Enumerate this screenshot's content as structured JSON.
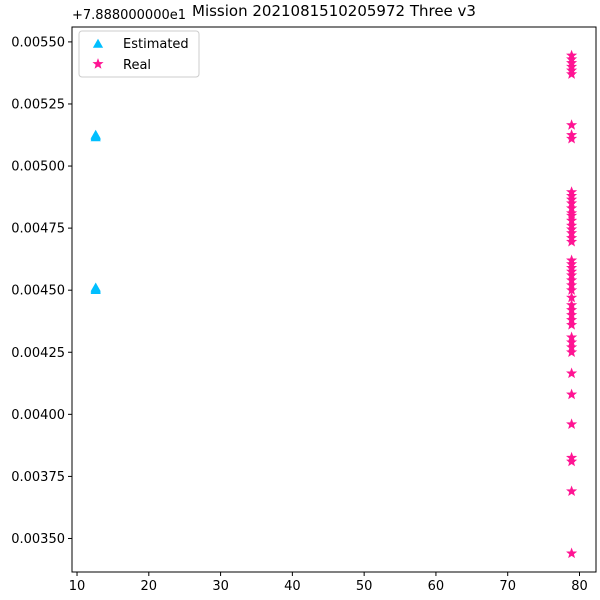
{
  "chart_data": {
    "type": "scatter",
    "title": "Mission 2021081510205972 Three v3",
    "xlabel": "",
    "ylabel": "",
    "y_offset_label": "+7.888000000e1",
    "xlim": [
      9.3,
      82.3
    ],
    "ylim": [
      0.003365,
      0.00556
    ],
    "x_ticks": [
      10,
      20,
      30,
      40,
      50,
      60,
      70,
      80
    ],
    "x_tick_labels": [
      "10",
      "20",
      "30",
      "40",
      "50",
      "60",
      "70",
      "80"
    ],
    "y_ticks": [
      0.0035,
      0.00375,
      0.004,
      0.00425,
      0.0045,
      0.00475,
      0.005,
      0.00525,
      0.0055
    ],
    "y_tick_labels": [
      "0.00350",
      "0.00375",
      "0.00400",
      "0.00425",
      "0.00450",
      "0.00475",
      "0.00500",
      "0.00525",
      "0.00550"
    ],
    "grid": false,
    "legend_position": "top-left",
    "series": [
      {
        "name": "Estimated",
        "marker": "triangle",
        "color": "#00bfff",
        "points": [
          [
            12.6,
            0.005125
          ],
          [
            12.6,
            0.00512
          ],
          [
            12.6,
            0.005115
          ],
          [
            12.6,
            0.00451
          ],
          [
            12.6,
            0.004505
          ],
          [
            12.6,
            0.0045
          ]
        ]
      },
      {
        "name": "Real",
        "marker": "star",
        "color": "#ff1493",
        "points": [
          [
            78.9,
            0.005445
          ],
          [
            78.9,
            0.00543
          ],
          [
            78.9,
            0.005415
          ],
          [
            78.9,
            0.0054
          ],
          [
            78.9,
            0.005385
          ],
          [
            78.9,
            0.00537
          ],
          [
            78.9,
            0.005165
          ],
          [
            78.9,
            0.005125
          ],
          [
            78.9,
            0.00511
          ],
          [
            78.9,
            0.004895
          ],
          [
            78.9,
            0.00488
          ],
          [
            78.9,
            0.004865
          ],
          [
            78.9,
            0.00485
          ],
          [
            78.9,
            0.00483
          ],
          [
            78.9,
            0.00481
          ],
          [
            78.9,
            0.0048
          ],
          [
            78.9,
            0.00478
          ],
          [
            78.9,
            0.00476
          ],
          [
            78.9,
            0.004745
          ],
          [
            78.9,
            0.00473
          ],
          [
            78.9,
            0.00471
          ],
          [
            78.9,
            0.004695
          ],
          [
            78.9,
            0.00462
          ],
          [
            78.9,
            0.004605
          ],
          [
            78.9,
            0.00459
          ],
          [
            78.9,
            0.004575
          ],
          [
            78.9,
            0.00456
          ],
          [
            78.9,
            0.00454
          ],
          [
            78.9,
            0.00452
          ],
          [
            78.9,
            0.0045
          ],
          [
            78.9,
            0.00447
          ],
          [
            78.9,
            0.00444
          ],
          [
            78.9,
            0.00442
          ],
          [
            78.9,
            0.0044
          ],
          [
            78.9,
            0.00438
          ],
          [
            78.9,
            0.00436
          ],
          [
            78.9,
            0.00431
          ],
          [
            78.9,
            0.00429
          ],
          [
            78.9,
            0.00427
          ],
          [
            78.9,
            0.00425
          ],
          [
            78.9,
            0.004165
          ],
          [
            78.9,
            0.00408
          ],
          [
            78.9,
            0.00396
          ],
          [
            78.9,
            0.003825
          ],
          [
            78.9,
            0.00381
          ],
          [
            78.9,
            0.00369
          ],
          [
            78.9,
            0.00344
          ]
        ]
      }
    ]
  }
}
